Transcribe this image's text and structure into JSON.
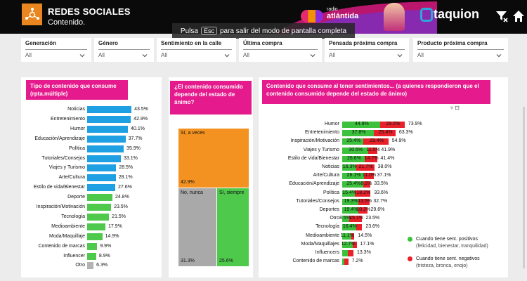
{
  "header": {
    "title": "REDES SOCIALES",
    "subtitle": "Contenido.",
    "partner_prefix": "radio",
    "partner_name": "atlántida",
    "brand_name": "taquion"
  },
  "toast": {
    "before": "Pulsa",
    "key": "Esc",
    "after": "para salir del modo de pantalla completa"
  },
  "filters": [
    {
      "label": "Generación",
      "value": "All"
    },
    {
      "label": "Género",
      "value": "All"
    },
    {
      "label": "Sentimiento en la calle",
      "value": "All"
    },
    {
      "label": "Última compra",
      "value": "All"
    },
    {
      "label": "Pensada próxima compra",
      "value": "All"
    },
    {
      "label": "Producto próxima compra",
      "value": "All"
    }
  ],
  "panel1": {
    "title": "Tipo de contenido que consume (rpta.múltiple)",
    "rows": [
      {
        "label": "Noticias",
        "value": "43.5%",
        "v": 43.5
      },
      {
        "label": "Entretenimiento",
        "value": "42.9%",
        "v": 42.9
      },
      {
        "label": "Humor",
        "value": "40.1%",
        "v": 40.1
      },
      {
        "label": "Educación/Aprendizaje",
        "value": "37.7%",
        "v": 37.7
      },
      {
        "label": "Política",
        "value": "35.9%",
        "v": 35.9
      },
      {
        "label": "Tutoriales/Consejos",
        "value": "33.1%",
        "v": 33.1
      },
      {
        "label": "Viajes y Turismo",
        "value": "28.5%",
        "v": 28.5
      },
      {
        "label": "Arte/Cultura",
        "value": "28.1%",
        "v": 28.1
      },
      {
        "label": "Estilo de vida/Bienestar",
        "value": "27.6%",
        "v": 27.6
      },
      {
        "label": "Deporte",
        "value": "24.8%",
        "v": 24.8
      },
      {
        "label": "Inspiración/Motivación",
        "value": "23.5%",
        "v": 23.5
      },
      {
        "label": "Tecnología",
        "value": "21.5%",
        "v": 21.5
      },
      {
        "label": "Medioambiente",
        "value": "17.9%",
        "v": 17.9
      },
      {
        "label": "Moda/Maquillaje",
        "value": "14.9%",
        "v": 14.9
      },
      {
        "label": "Contenido de marcas",
        "value": "9.9%",
        "v": 9.9
      },
      {
        "label": "Influencer",
        "value": "8.9%",
        "v": 8.9
      },
      {
        "label": "Otro",
        "value": "6.3%",
        "v": 6.3
      }
    ]
  },
  "panel2": {
    "title": "¿El contenido consumido depende del estado de ánimo?",
    "boxes": [
      {
        "label": "Sí, a veces",
        "value": "42.9%",
        "v": 42.9,
        "color": "#f39220"
      },
      {
        "label": "No, nunca",
        "value": "31.3%",
        "v": 31.3,
        "color": "#a9a9a9"
      },
      {
        "label": "Sí, siempre",
        "value": "25.6%",
        "v": 25.6,
        "color": "#4ec94b"
      }
    ]
  },
  "panel3": {
    "title": "Contenido que consume al tener sentimientos... (a quienes respondieron que el contenido consumido depende del estado de ánimo)",
    "rows": [
      {
        "label": "Humor",
        "pos": 44.8,
        "neg": 29.2,
        "pos_label": "44.8%",
        "neg_label": "29.2%",
        "total": "73.9%"
      },
      {
        "label": "Entretenimiento",
        "pos": 37.8,
        "neg": 25.4,
        "pos_label": "37.8%",
        "neg_label": "25.4%",
        "total": "63.3%"
      },
      {
        "label": "Inspiración/Motivación",
        "pos": 25.4,
        "neg": 29.4,
        "pos_label": "25.4%",
        "neg_label": "29.4%",
        "total": "54.9%"
      },
      {
        "label": "Viajes y Turismo",
        "pos": 30.5,
        "neg": 11.5,
        "pos_label": "30.5%",
        "neg_label": "11.5%",
        "total": "41.9%"
      },
      {
        "label": "Estilo de vida/Bienestar",
        "pos": 26.6,
        "neg": 14.7,
        "pos_label": "26.6%",
        "neg_label": "14.7%",
        "total": "41.4%"
      },
      {
        "label": "Noticias",
        "pos": 16.3,
        "neg": 21.7,
        "pos_label": "16.3%",
        "neg_label": "21.7%",
        "total": "38.0%"
      },
      {
        "label": "Arte/Cultura",
        "pos": 26.1,
        "neg": 11.0,
        "pos_label": "26.1%",
        "neg_label": "11.0%",
        "total": "37.1%"
      },
      {
        "label": "Educación/Aprendizaje",
        "pos": 25.4,
        "neg": 8.2,
        "pos_label": "25.4%",
        "neg_label": "8.2%",
        "total": "33.5%"
      },
      {
        "label": "Política",
        "pos": 15.4,
        "neg": 18.2,
        "pos_label": "15.4%",
        "neg_label": "18.2%",
        "total": "33.6%"
      },
      {
        "label": "Tutoriales/Consejos",
        "pos": 19.3,
        "neg": 13.5,
        "pos_label": "19.3%",
        "neg_label": "13.5%",
        "total": "32.7%"
      },
      {
        "label": "Deportes",
        "pos": 19.4,
        "neg": 10.2,
        "pos_label": "19.4%",
        "neg_label": "10.2%",
        "total": "29.6%"
      },
      {
        "label": "Otro",
        "pos": 8.5,
        "neg": 15.1,
        "pos_label": "8.5%",
        "neg_label": "15.1%",
        "total": "23.5%"
      },
      {
        "label": "Tecnología",
        "pos": 16.4,
        "neg": 7.2,
        "pos_label": "16.4%",
        "neg_label": "",
        "total": "23.6%"
      },
      {
        "label": "Medioambiente",
        "pos": 11.1,
        "neg": 3.4,
        "pos_label": "11.1%",
        "neg_label": "",
        "total": "14.5%"
      },
      {
        "label": "Moda/Maquillajes",
        "pos": 12.7,
        "neg": 4.4,
        "pos_label": "12.7%",
        "neg_label": "",
        "total": "17.1%"
      },
      {
        "label": "Influencers",
        "pos": 6.5,
        "neg": 6.8,
        "pos_label": "",
        "neg_label": "",
        "total": "13.3%"
      },
      {
        "label": "Contenido de marcas",
        "pos": 2.5,
        "neg": 4.7,
        "pos_label": "",
        "neg_label": "",
        "total": "7.2%"
      }
    ],
    "legend": [
      {
        "title": "Cuando tiene sent. positivos",
        "sub": "(felicidad, bienestar, tranquilidad)",
        "color": "#3cc13c"
      },
      {
        "title": "Cuando tiene sent. negativos",
        "sub": "(tristeza, bronca, enojo)",
        "color": "#e8202a"
      }
    ]
  },
  "colors": {
    "accent": "#e51a8c",
    "bar_blue": "#1fa0e3",
    "bar_green": "#4ec94b",
    "bar_gray": "#b3b3b3",
    "pos": "#3cc13c",
    "neg": "#e8202a"
  }
}
